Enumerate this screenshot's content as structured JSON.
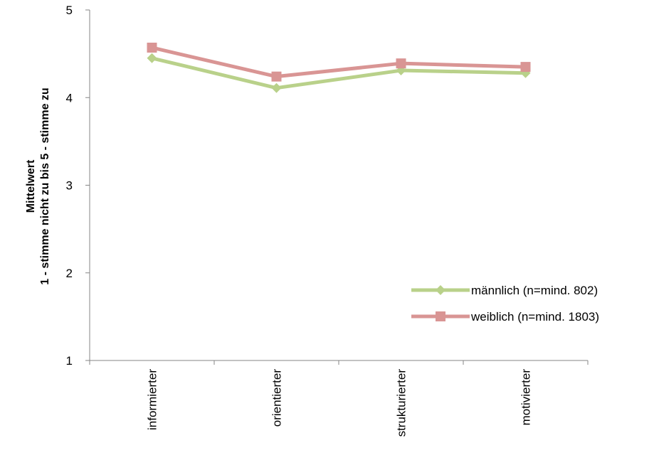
{
  "chart_data": {
    "type": "line",
    "categories": [
      "informierter",
      "orientierter",
      "strukturierter",
      "motivierter"
    ],
    "series": [
      {
        "name": "männlich (n=mind. 802)",
        "values": [
          4.45,
          4.11,
          4.31,
          4.28
        ],
        "color": "#b9d18a",
        "marker": "diamond"
      },
      {
        "name": "weiblich (n=mind. 1803)",
        "values": [
          4.57,
          4.24,
          4.39,
          4.35
        ],
        "color": "#d99594",
        "marker": "square"
      }
    ],
    "ylabel_line1": "Mittelwert",
    "ylabel_line2": "1 - stimme nicht zu  bis  5 - stimme zu",
    "ylim": [
      1,
      5
    ],
    "yticks": [
      "1",
      "2",
      "3",
      "4",
      "5"
    ],
    "grid": false,
    "legend_position": "right"
  }
}
